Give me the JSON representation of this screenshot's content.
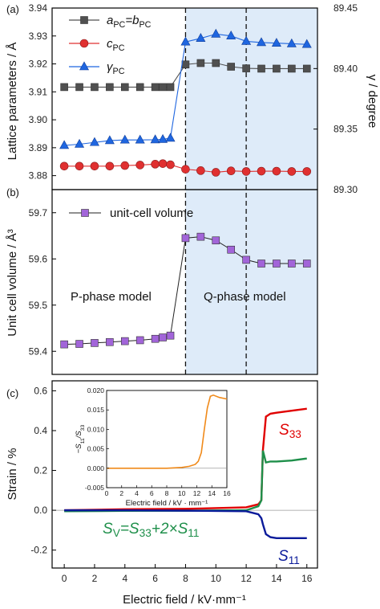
{
  "colors": {
    "a": "#505050",
    "c": "#e03030",
    "g": "#1f66e0",
    "v": "#a265d9",
    "q_region": "#deebf9",
    "s33": "#e00000",
    "s11": "#0a1a9a",
    "sv": "#1e8f4a",
    "inset": "#f08a1a"
  },
  "chart_data": [
    {
      "type": "line",
      "panel_label": "(a)",
      "xlabel": "",
      "ylabel": "Lattice parameters / Å",
      "y2label": "γ / degree",
      "xlim": [
        -0.8,
        16.7
      ],
      "ylim": [
        3.875,
        3.94
      ],
      "y2lim": [
        89.3,
        89.45
      ],
      "yticks": [
        "3.88",
        "3.89",
        "3.90",
        "3.91",
        "3.92",
        "3.93",
        "3.94"
      ],
      "y2ticks": [
        "89.30",
        "89.35",
        "89.40",
        "89.45"
      ],
      "x": [
        0,
        1,
        2,
        3,
        4,
        5,
        6,
        6.5,
        7,
        8,
        9,
        10,
        11,
        12,
        13,
        14,
        15,
        16
      ],
      "series": [
        {
          "name_html": "a<sub>PC</sub>=b<sub>PC</sub>",
          "axis": "left",
          "marker": "square",
          "values": [
            3.9117,
            3.9117,
            3.9117,
            3.9117,
            3.9117,
            3.9117,
            3.9117,
            3.9117,
            3.9117,
            3.9198,
            3.9203,
            3.9203,
            3.919,
            3.9184,
            3.9183,
            3.9183,
            3.9183,
            3.9183
          ]
        },
        {
          "name_html": "c<sub>PC</sub>",
          "axis": "left",
          "marker": "circle",
          "values": [
            3.8834,
            3.8834,
            3.8834,
            3.8834,
            3.8836,
            3.8838,
            3.8841,
            3.8843,
            3.8839,
            3.8823,
            3.8818,
            3.8812,
            3.8817,
            3.8815,
            3.8816,
            3.8816,
            3.8815,
            3.8815
          ]
        },
        {
          "name_html": "γ<sub>PC</sub>",
          "axis": "right",
          "marker": "triangle",
          "values": [
            89.3365,
            89.3375,
            89.339,
            89.3405,
            89.341,
            89.341,
            89.3412,
            89.3415,
            89.3425,
            89.422,
            89.425,
            89.4285,
            89.427,
            89.4225,
            89.4215,
            89.421,
            89.4205,
            89.42
          ]
        }
      ],
      "boundaries": [
        8,
        12
      ]
    },
    {
      "type": "line",
      "panel_label": "(b)",
      "xlabel": "",
      "ylabel": "Unit cell volume / Å³",
      "xlim": [
        -0.8,
        16.7
      ],
      "ylim": [
        59.35,
        59.75
      ],
      "yticks": [
        "59.4",
        "59.5",
        "59.6",
        "59.7"
      ],
      "x": [
        0,
        1,
        2,
        3,
        4,
        5,
        6,
        6.5,
        7,
        8,
        9,
        10,
        11,
        12,
        13,
        14,
        15,
        16
      ],
      "series": [
        {
          "name": "unit-cell volume",
          "marker": "square",
          "values": [
            59.415,
            59.416,
            59.418,
            59.42,
            59.422,
            59.424,
            59.427,
            59.43,
            59.434,
            59.645,
            59.648,
            59.64,
            59.62,
            59.598,
            59.59,
            59.59,
            59.59,
            59.59
          ]
        }
      ],
      "annotations": [
        "P-phase model",
        "Q-phase model"
      ],
      "boundaries": [
        8,
        12
      ]
    },
    {
      "type": "line",
      "panel_label": "(c)",
      "xlabel": "Electric field / kV·mm⁻¹",
      "ylabel": "Strain / %",
      "xlim": [
        -0.8,
        16.7
      ],
      "ylim": [
        -0.29,
        0.65
      ],
      "xticks": [
        "0",
        "2",
        "4",
        "6",
        "8",
        "10",
        "12",
        "14",
        "16"
      ],
      "yticks": [
        "-0.2",
        "0.0",
        "0.2",
        "0.4",
        "0.6"
      ],
      "series": [
        {
          "name_html": "S<sub>33</sub>",
          "x": [
            0,
            4,
            8,
            12,
            12.8,
            13.0,
            13.1,
            13.3,
            13.6,
            14,
            15,
            16
          ],
          "values": [
            0,
            0.005,
            0.007,
            0.015,
            0.03,
            0.05,
            0.3,
            0.47,
            0.485,
            0.49,
            0.5,
            0.51
          ]
        },
        {
          "name_html": "S<sub>V</sub>=S<sub>33</sub>+2×S<sub>11</sub>",
          "x": [
            0,
            4,
            8,
            12,
            12.8,
            13.0,
            13.1,
            13.3,
            13.6,
            14,
            15,
            16
          ],
          "values": [
            -0.005,
            -0.003,
            -0.002,
            0.0,
            0.02,
            0.05,
            0.3,
            0.24,
            0.245,
            0.245,
            0.25,
            0.26
          ]
        },
        {
          "name_html": "S<sub>11</sub>",
          "x": [
            0,
            4,
            8,
            12,
            12.8,
            13.0,
            13.1,
            13.3,
            13.6,
            14,
            15,
            16
          ],
          "values": [
            0,
            0,
            -0.002,
            -0.005,
            -0.02,
            -0.04,
            -0.07,
            -0.12,
            -0.135,
            -0.14,
            -0.14,
            -0.14
          ]
        }
      ],
      "inset": {
        "type": "line",
        "xlabel": "Electric field / kV · mm⁻¹",
        "ylabel_html": "−S<sub>11</sub>/S<sub>33</sub>",
        "xlim": [
          0,
          16
        ],
        "ylim": [
          -0.005,
          0.02
        ],
        "xticks": [
          "0",
          "2",
          "4",
          "6",
          "8",
          "10",
          "12",
          "14",
          "16"
        ],
        "yticks": [
          "-0.005",
          "0.000",
          "0.005",
          "0.010",
          "0.015",
          "0.020"
        ],
        "x": [
          0,
          2,
          4,
          6,
          8,
          10,
          11,
          11.8,
          12.2,
          12.6,
          13.0,
          13.4,
          13.8,
          14.2,
          15,
          16
        ],
        "values": [
          0.0,
          0.0,
          0.0,
          0.0,
          0.0,
          0.0002,
          0.0005,
          0.001,
          0.0018,
          0.004,
          0.01,
          0.0155,
          0.0185,
          0.0188,
          0.0182,
          0.0178
        ]
      }
    }
  ]
}
